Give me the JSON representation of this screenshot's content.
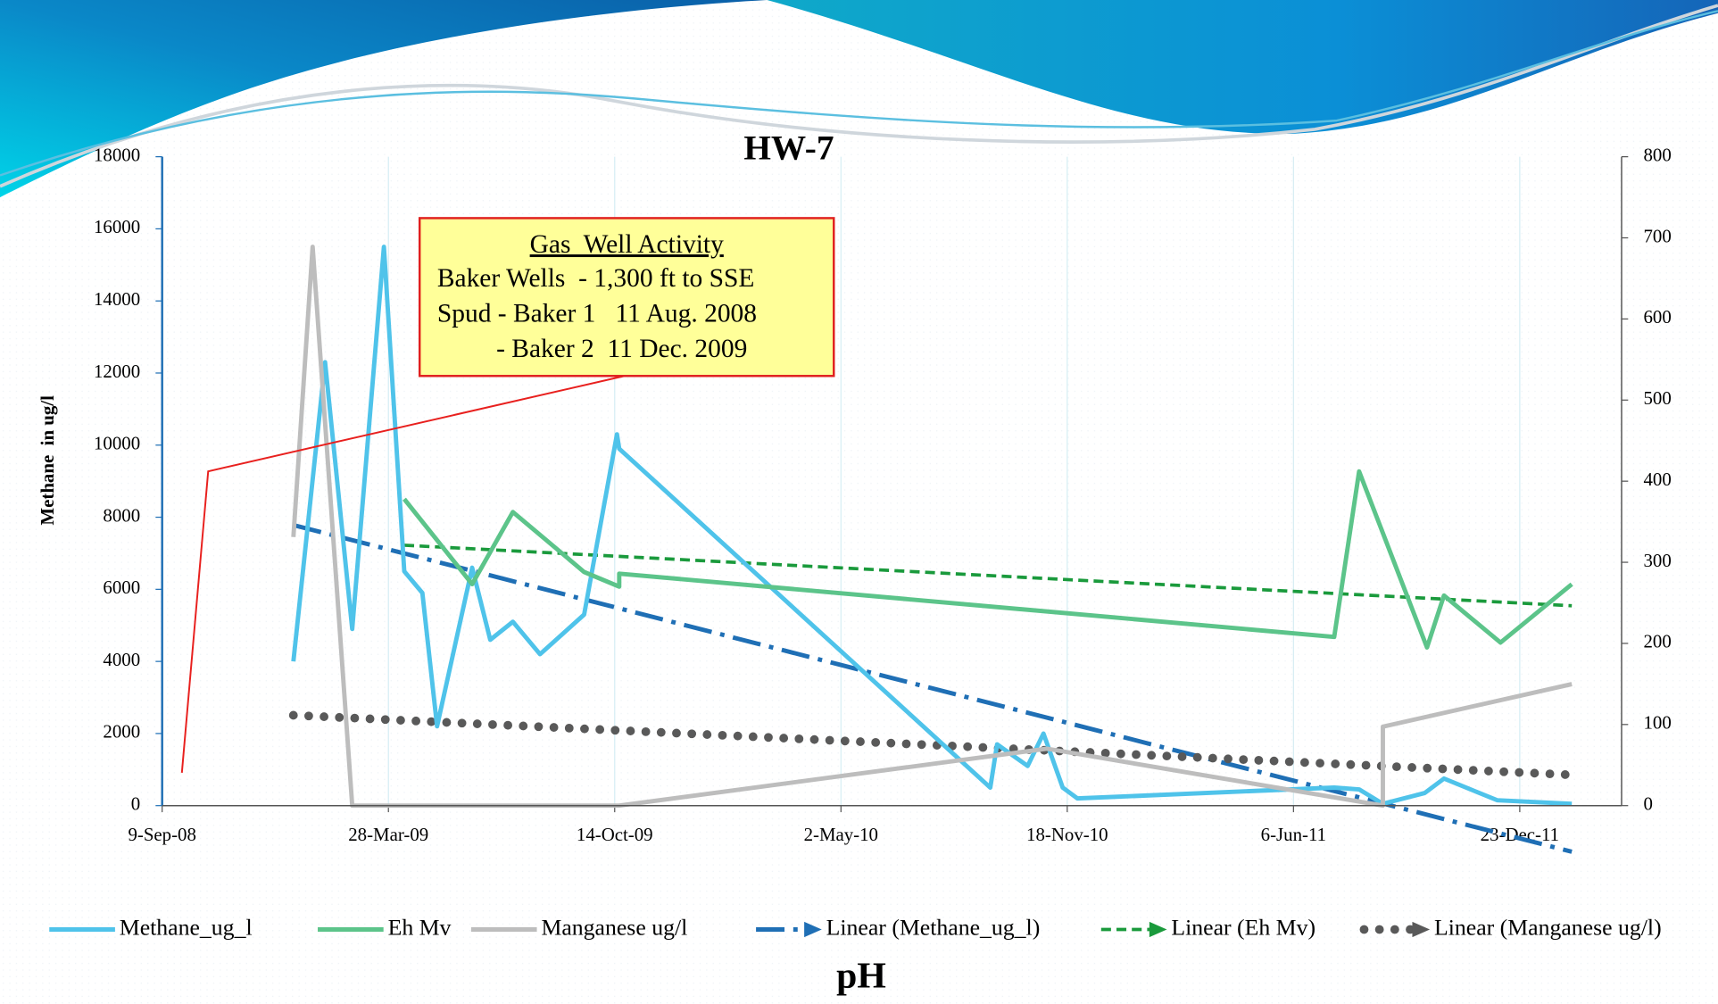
{
  "chart_data": {
    "type": "line",
    "title": "HW-7",
    "ylabel": "Methane  in ug/l",
    "xlabel": "pH",
    "xlim": [
      "2008-09-09",
      "2012-03-22"
    ],
    "xticks": [
      {
        "value": "2008-09-09",
        "label": "9-Sep-08"
      },
      {
        "value": "2009-03-28",
        "label": "28-Mar-09"
      },
      {
        "value": "2009-10-14",
        "label": "14-Oct-09"
      },
      {
        "value": "2010-05-02",
        "label": "2-May-10"
      },
      {
        "value": "2010-11-18",
        "label": "18-Nov-10"
      },
      {
        "value": "2011-06-06",
        "label": "6-Jun-11"
      },
      {
        "value": "2011-12-23",
        "label": "23-Dec-11"
      }
    ],
    "ylim": [
      0,
      18000
    ],
    "yticks": [
      0,
      2000,
      4000,
      6000,
      8000,
      10000,
      12000,
      14000,
      16000,
      18000
    ],
    "y2lim": [
      0,
      800
    ],
    "y2ticks": [
      0,
      100,
      200,
      300,
      400,
      500,
      600,
      700,
      800
    ],
    "grid": true,
    "series": [
      {
        "name": "Methane_ug_l",
        "color": "#4fc3ea",
        "axis": "y",
        "x": [
          "2009-01-03",
          "2009-01-31",
          "2009-02-24",
          "2009-03-24",
          "2009-04-11",
          "2009-04-27",
          "2009-05-10",
          "2009-06-10",
          "2009-06-26",
          "2009-07-16",
          "2009-08-09",
          "2009-09-17",
          "2009-10-16",
          "2009-10-18",
          "2010-09-11",
          "2010-09-17",
          "2010-10-14",
          "2010-10-28",
          "2010-11-14",
          "2010-11-27",
          "2011-07-12",
          "2011-08-03",
          "2011-08-24",
          "2011-09-30",
          "2011-10-17",
          "2011-12-03",
          "2012-02-07"
        ],
        "values": [
          4000,
          12300,
          4900,
          15500,
          6500,
          5900,
          2200,
          6600,
          4600,
          5100,
          4200,
          5300,
          10300,
          9900,
          500,
          1700,
          1100,
          2000,
          500,
          200,
          500,
          450,
          50,
          350,
          750,
          150,
          50
        ]
      },
      {
        "name": "Eh Mv",
        "color": "#5cc48a",
        "axis": "y2",
        "x": [
          "2009-04-11",
          "2009-06-10",
          "2009-07-16",
          "2009-09-17",
          "2009-10-18",
          "2009-10-18",
          "2011-07-12",
          "2011-08-03",
          "2011-10-02",
          "2011-10-17",
          "2011-12-06",
          "2012-02-07"
        ],
        "values": [
          378,
          273,
          362,
          288,
          270,
          286,
          208,
          412,
          195,
          259,
          201,
          273
        ]
      },
      {
        "name": "Manganese ug/l",
        "color": "#bdbdbd",
        "axis": "y",
        "x": [
          "2009-01-03",
          "2009-01-20",
          "2009-02-24",
          "2009-03-24",
          "2009-04-11",
          "2009-04-27",
          "2009-05-10",
          "2009-06-10",
          "2009-08-09",
          "2009-09-17",
          "2009-10-18",
          "2010-10-31",
          "2011-08-24",
          "2011-08-24",
          "2012-02-07"
        ],
        "values": [
          7450,
          15500,
          0,
          0,
          0,
          0,
          0,
          0,
          0,
          0,
          0,
          1580,
          0,
          2190,
          3370
        ]
      }
    ],
    "trendlines": [
      {
        "name": "Linear (Methane_ug_l)",
        "color": "#1f6fb5",
        "series": 0,
        "dash": "dashdot"
      },
      {
        "name": "Linear (Eh Mv)",
        "color": "#1a9a3c",
        "series": 1,
        "dash": "dash"
      },
      {
        "name": "Linear (Manganese ug/l)",
        "color": "#595959",
        "series": 2,
        "dash": "dot"
      }
    ],
    "annotation": {
      "title": "Gas  Well Activity",
      "lines": [
        "Baker Wells  - 1,300 ft to SSE",
        "Spud - Baker 1   11 Aug. 2008",
        "         - Baker 2  11 Dec. 2009"
      ]
    }
  }
}
